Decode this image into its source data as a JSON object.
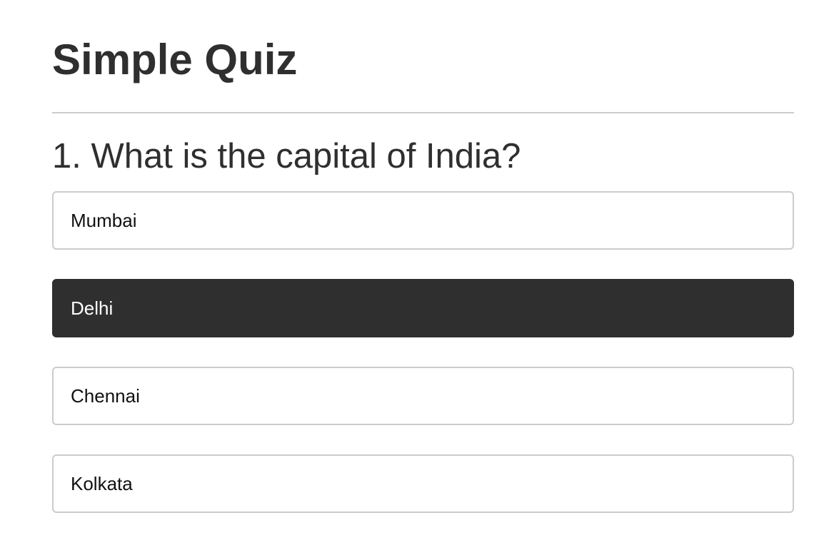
{
  "quiz": {
    "title": "Simple Quiz",
    "question": "1. What is the capital of India?",
    "options": [
      {
        "label": "Mumbai",
        "selected": false
      },
      {
        "label": "Delhi",
        "selected": true
      },
      {
        "label": "Chennai",
        "selected": false
      },
      {
        "label": "Kolkata",
        "selected": false
      }
    ],
    "colors": {
      "selected_background": "#2f2f2f",
      "border": "#cccccc"
    }
  }
}
